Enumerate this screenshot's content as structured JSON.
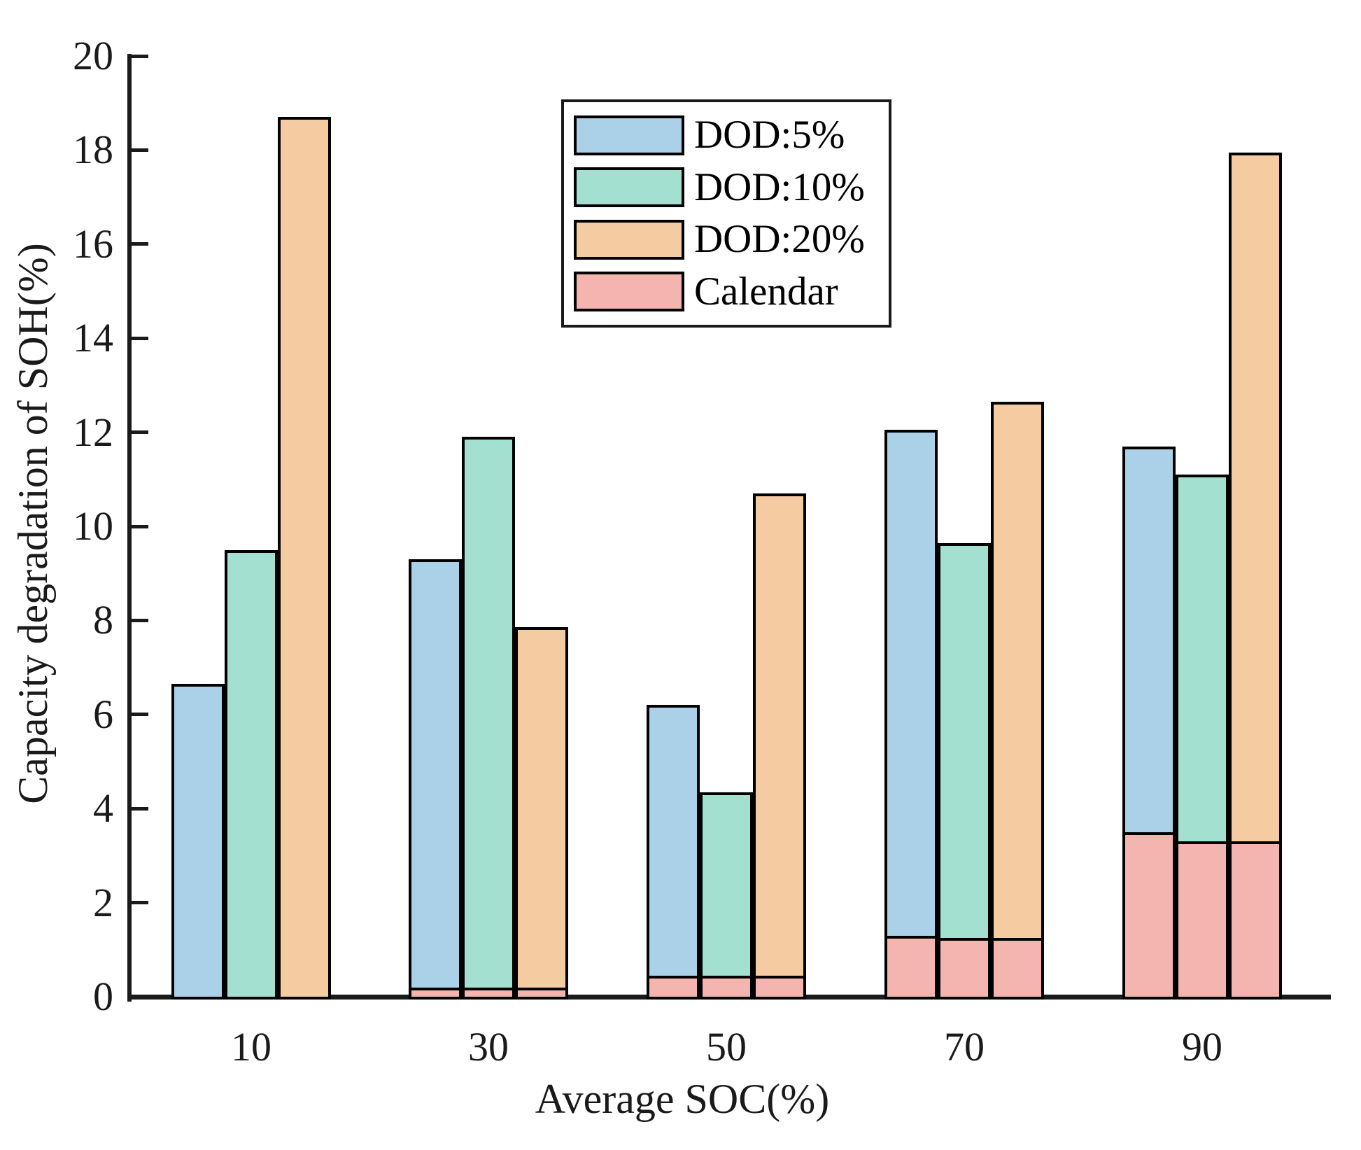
{
  "chart_data": {
    "type": "bar",
    "title": "",
    "xlabel": "Average SOC(%)",
    "ylabel": "Capacity degradation of SOH(%)",
    "categories": [
      "10",
      "30",
      "50",
      "70",
      "90"
    ],
    "ylim": [
      0,
      20
    ],
    "ytick_step": 2,
    "ytick_labels": [
      "0",
      "2",
      "4",
      "6",
      "8",
      "10",
      "12",
      "14",
      "16",
      "18",
      "20"
    ],
    "grid": false,
    "legend_position": "inside-top-center-left",
    "bar_mode": "grouped, with Calendar portion stacked at the bottom of each bar",
    "series": [
      {
        "name": "DOD:5%",
        "color": "#ABD1E8",
        "total_degradation": [
          6.65,
          9.3,
          6.2,
          12.05,
          11.7
        ],
        "calendar_part": [
          0,
          0.2,
          0.45,
          1.3,
          3.5
        ]
      },
      {
        "name": "DOD:10%",
        "color": "#A3E0CF",
        "total_degradation": [
          9.5,
          11.9,
          4.35,
          9.65,
          11.1
        ],
        "calendar_part": [
          0,
          0.2,
          0.45,
          1.25,
          3.3
        ]
      },
      {
        "name": "DOD:20%",
        "color": "#F5CBA1",
        "total_degradation": [
          18.7,
          7.85,
          10.7,
          12.65,
          17.95
        ],
        "calendar_part": [
          0,
          0.2,
          0.45,
          1.25,
          3.3
        ]
      }
    ],
    "calendar_legend": {
      "name": "Calendar",
      "color": "#F4B5B0"
    },
    "axis_color": "#1a1a1a",
    "bar_edge_color": "#000000"
  }
}
